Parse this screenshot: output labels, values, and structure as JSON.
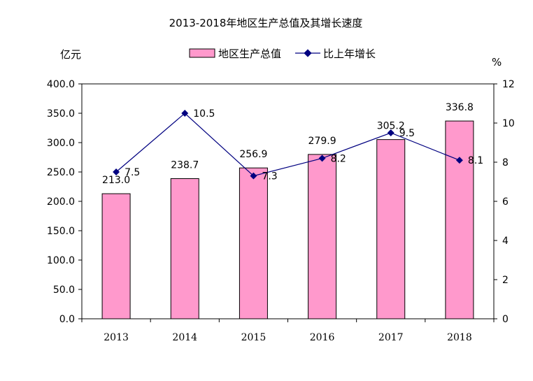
{
  "chart_data": {
    "type": "bar",
    "title": "2013-2018年地区生产总值及其增长速度",
    "categories": [
      "2013",
      "2014",
      "2015",
      "2016",
      "2017",
      "2018"
    ],
    "series": [
      {
        "name": "地区生产总值",
        "kind": "bar",
        "axis": "left",
        "color": "#ff99cc",
        "values": [
          213.0,
          238.7,
          256.9,
          279.9,
          305.2,
          336.8
        ],
        "labels": [
          "213.0",
          "238.7",
          "256.9",
          "279.9",
          "305.2",
          "336.8"
        ]
      },
      {
        "name": "比上年增长",
        "kind": "line",
        "axis": "right",
        "color": "#000080",
        "values": [
          7.5,
          10.5,
          7.3,
          8.2,
          9.5,
          8.1
        ],
        "labels": [
          "7.5",
          "10.5",
          "7.3",
          "8.2",
          "9.5",
          "8.1"
        ]
      }
    ],
    "left_axis": {
      "unit": "亿元",
      "ylim": [
        0,
        400
      ],
      "ticks": [
        "0.0",
        "50.0",
        "100.0",
        "150.0",
        "200.0",
        "250.0",
        "300.0",
        "350.0",
        "400.0"
      ]
    },
    "right_axis": {
      "unit": "%",
      "ylim": [
        0,
        12
      ],
      "ticks": [
        "0",
        "2",
        "4",
        "6",
        "8",
        "10",
        "12"
      ]
    },
    "grid": false,
    "legend_position": "top"
  }
}
